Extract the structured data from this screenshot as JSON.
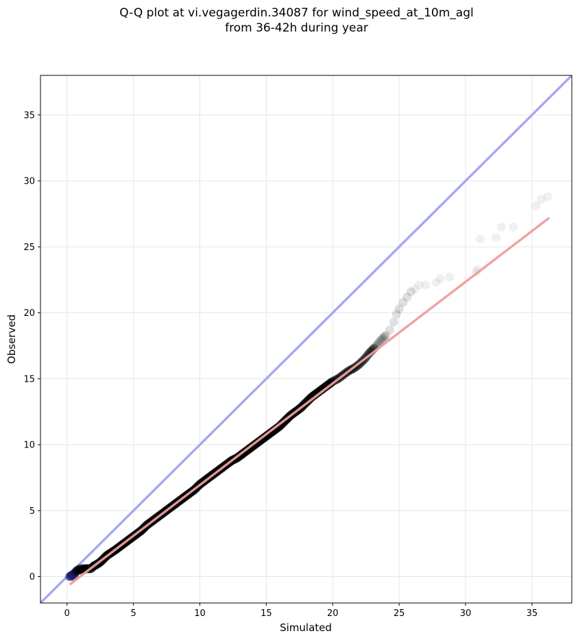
{
  "chart_data": {
    "type": "scatter",
    "title_lines": [
      "Q-Q plot at vi.vegagerdin.34087 for wind_speed_at_10m_agl",
      "from 36-42h during year"
    ],
    "xlabel": "Simulated",
    "ylabel": "Observed",
    "xlim": [
      -2,
      38
    ],
    "ylim": [
      -2,
      38
    ],
    "xticks": [
      0,
      5,
      10,
      15,
      20,
      25,
      30,
      35
    ],
    "yticks": [
      0,
      5,
      10,
      15,
      20,
      25,
      30,
      35
    ],
    "grid": true,
    "identity_line": {
      "x": [
        -2,
        38
      ],
      "y": [
        -2,
        38
      ],
      "color": "#a5a8f2"
    },
    "fit_line": {
      "x": [
        0.2,
        36.3
      ],
      "y": [
        -0.6,
        27.2
      ],
      "color": "#f5a5a5"
    },
    "colors": {
      "points": "#000000",
      "low_points": "#1a1a66",
      "fit_underlay": "#8b0000"
    },
    "points": [
      [
        0.2,
        0.0
      ],
      [
        0.35,
        0.1
      ],
      [
        0.5,
        0.2
      ],
      [
        0.55,
        0.0
      ],
      [
        0.6,
        0.3
      ],
      [
        0.7,
        0.4
      ],
      [
        0.8,
        0.5
      ],
      [
        0.9,
        0.5
      ],
      [
        1.0,
        0.6
      ],
      [
        1.1,
        0.5
      ],
      [
        1.2,
        0.6
      ],
      [
        1.4,
        0.6
      ],
      [
        1.6,
        0.6
      ],
      [
        1.8,
        0.6
      ],
      [
        2.0,
        0.8
      ],
      [
        2.2,
        0.9
      ],
      [
        2.5,
        1.1
      ],
      [
        2.8,
        1.4
      ],
      [
        3.0,
        1.6
      ],
      [
        3.3,
        1.8
      ],
      [
        3.6,
        2.0
      ],
      [
        4.0,
        2.3
      ],
      [
        4.4,
        2.6
      ],
      [
        4.8,
        2.9
      ],
      [
        5.2,
        3.2
      ],
      [
        5.6,
        3.5
      ],
      [
        6.0,
        3.9
      ],
      [
        6.4,
        4.2
      ],
      [
        6.8,
        4.5
      ],
      [
        7.2,
        4.8
      ],
      [
        7.6,
        5.1
      ],
      [
        8.0,
        5.4
      ],
      [
        8.4,
        5.7
      ],
      [
        8.8,
        6.0
      ],
      [
        9.2,
        6.3
      ],
      [
        9.6,
        6.6
      ],
      [
        10.0,
        7.0
      ],
      [
        10.4,
        7.3
      ],
      [
        10.8,
        7.6
      ],
      [
        11.2,
        7.9
      ],
      [
        11.6,
        8.2
      ],
      [
        12.0,
        8.5
      ],
      [
        12.4,
        8.8
      ],
      [
        12.8,
        9.0
      ],
      [
        13.2,
        9.3
      ],
      [
        13.6,
        9.6
      ],
      [
        14.0,
        9.9
      ],
      [
        14.4,
        10.2
      ],
      [
        14.8,
        10.5
      ],
      [
        15.2,
        10.8
      ],
      [
        15.6,
        11.1
      ],
      [
        16.0,
        11.4
      ],
      [
        16.4,
        11.8
      ],
      [
        16.8,
        12.2
      ],
      [
        17.2,
        12.5
      ],
      [
        17.6,
        12.8
      ],
      [
        18.0,
        13.2
      ],
      [
        18.4,
        13.6
      ],
      [
        18.8,
        13.9
      ],
      [
        19.2,
        14.2
      ],
      [
        19.6,
        14.5
      ],
      [
        20.0,
        14.8
      ],
      [
        20.4,
        15.0
      ],
      [
        20.8,
        15.3
      ],
      [
        21.2,
        15.6
      ],
      [
        21.6,
        15.8
      ],
      [
        22.0,
        16.1
      ],
      [
        22.4,
        16.5
      ],
      [
        22.8,
        17.0
      ],
      [
        23.2,
        17.4
      ],
      [
        23.6,
        17.9
      ],
      [
        24.0,
        18.3
      ],
      [
        24.3,
        18.7
      ],
      [
        24.6,
        19.3
      ],
      [
        24.8,
        19.9
      ],
      [
        25.0,
        20.3
      ],
      [
        25.3,
        20.8
      ],
      [
        25.6,
        21.2
      ],
      [
        25.9,
        21.6
      ],
      [
        26.2,
        21.8
      ],
      [
        26.5,
        22.1
      ],
      [
        27.0,
        22.1
      ],
      [
        27.8,
        22.3
      ],
      [
        28.1,
        22.6
      ],
      [
        28.8,
        22.7
      ],
      [
        30.8,
        23.1
      ],
      [
        30.9,
        23.3
      ],
      [
        31.1,
        25.6
      ],
      [
        32.3,
        25.7
      ],
      [
        32.7,
        26.5
      ],
      [
        33.6,
        26.5
      ],
      [
        35.3,
        28.1
      ],
      [
        35.7,
        28.6
      ],
      [
        36.2,
        28.8
      ]
    ]
  }
}
